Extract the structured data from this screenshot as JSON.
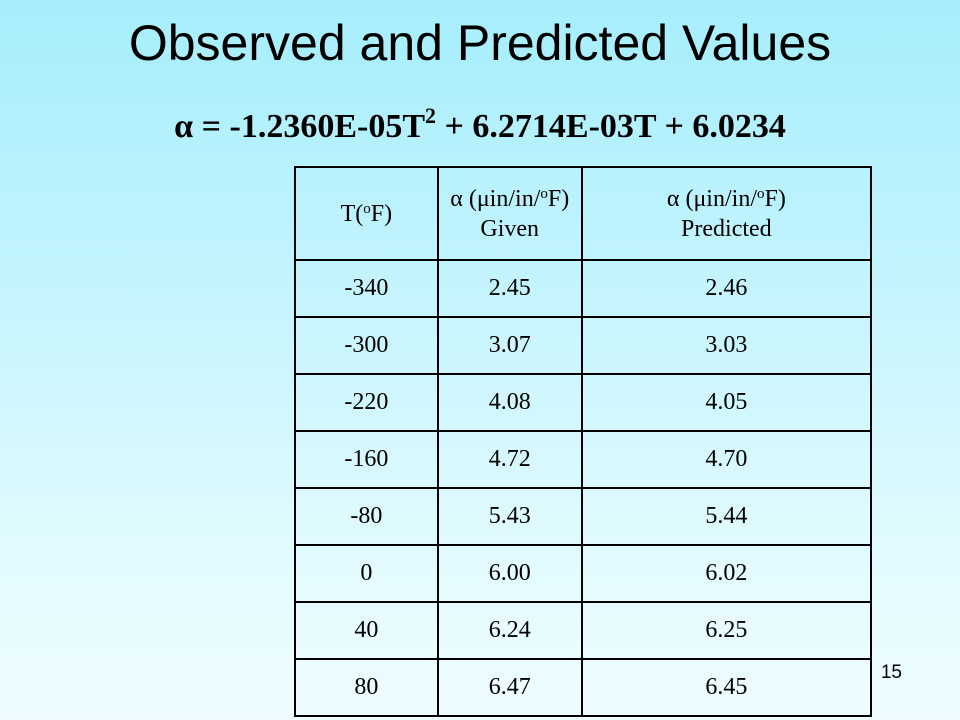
{
  "title": "Observed and Predicted Values",
  "formula": {
    "lhs": "α = -1.2360E-05T",
    "exponent": "2",
    "rhs": " + 6.2714E-03T + 6.0234"
  },
  "table": {
    "headers": [
      {
        "pre": "T(",
        "sup": "o",
        "post": "F)",
        "line2": ""
      },
      {
        "pre": "α (μin/in/",
        "sup": "o",
        "post": "F)",
        "line2": "Given"
      },
      {
        "pre": "α (μin/in/",
        "sup": "o",
        "post": "F)",
        "line2": "Predicted"
      }
    ],
    "rows": [
      [
        "-340",
        "2.45",
        "2.46"
      ],
      [
        "-300",
        "3.07",
        "3.03"
      ],
      [
        "-220",
        "4.08",
        "4.05"
      ],
      [
        "-160",
        "4.72",
        "4.70"
      ],
      [
        "-80",
        "5.43",
        "5.44"
      ],
      [
        "0",
        "6.00",
        "6.02"
      ],
      [
        "40",
        "6.24",
        "6.25"
      ],
      [
        "80",
        "6.47",
        "6.45"
      ]
    ]
  },
  "page_number": "15"
}
